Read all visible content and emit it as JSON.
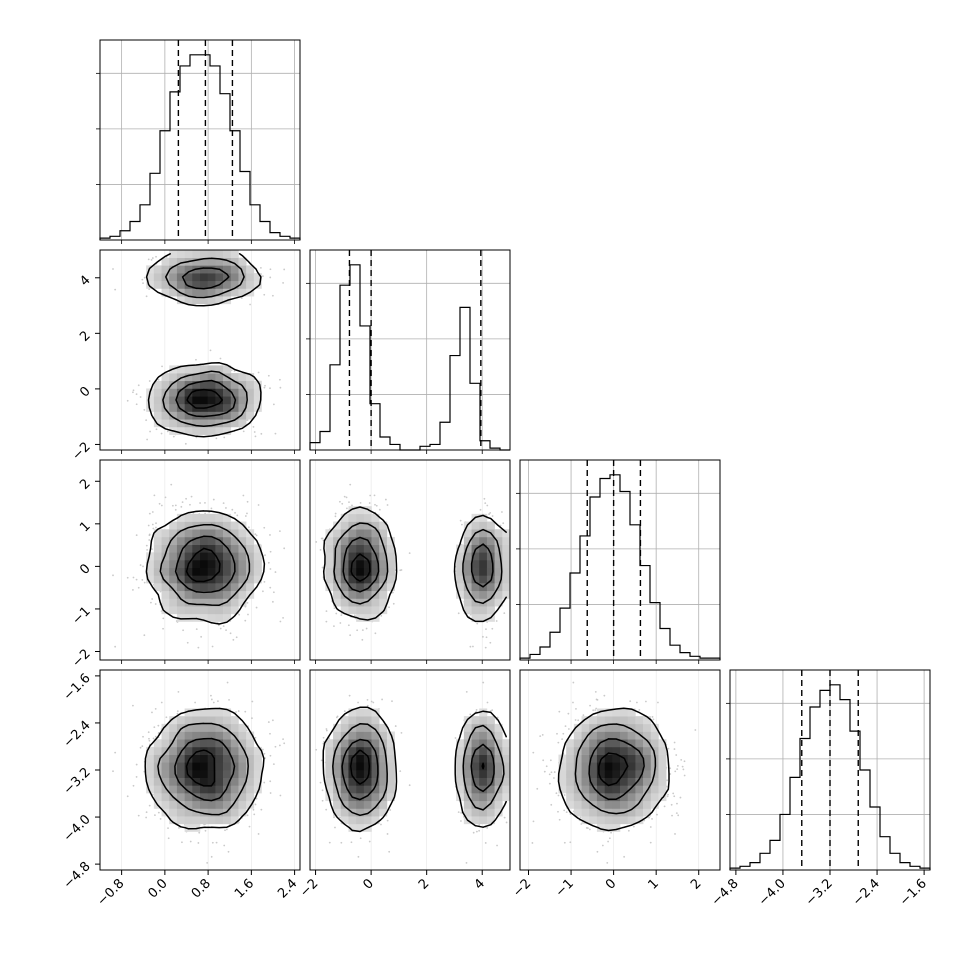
{
  "chart_data": {
    "type": "corner",
    "grid": true,
    "dims": [
      {
        "mean": 0.75,
        "sd": 0.5,
        "range": [
          -1.2,
          2.5
        ],
        "ticks": [
          -0.8,
          0.0,
          0.8,
          1.6,
          2.4
        ],
        "tick_labels": [
          "−0.8",
          "0.0",
          "0.8",
          "1.6",
          "2.4"
        ],
        "quantiles": [
          0.25,
          0.75,
          1.25
        ],
        "hist_counts": [
          1,
          2,
          5,
          10,
          19,
          36,
          59,
          80,
          94,
          100,
          100,
          94,
          79,
          59,
          37,
          19,
          10,
          4,
          2,
          1
        ]
      },
      {
        "mixture": [
          {
            "mean": -0.4,
            "sd": 0.55,
            "weight": 0.62
          },
          {
            "mean": 4.0,
            "sd": 0.38,
            "weight": 0.38
          }
        ],
        "range": [
          -2.2,
          5.0
        ],
        "ticks": [
          -2,
          0,
          2,
          4
        ],
        "tick_labels": [
          "−2",
          "0",
          "2",
          "4"
        ],
        "quantiles": [
          -0.78,
          0.0,
          3.95
        ],
        "hist_counts": [
          4,
          10,
          46,
          89,
          100,
          67,
          25,
          7,
          3,
          0,
          0,
          2,
          3,
          15,
          51,
          77,
          36,
          5,
          1,
          0
        ]
      },
      {
        "mean": 0.0,
        "sd": 0.62,
        "range": [
          -2.2,
          2.5
        ],
        "ticks": [
          -2,
          -1,
          0,
          1,
          2
        ],
        "tick_labels": [
          "−2",
          "−1",
          "0",
          "1",
          "2"
        ],
        "quantiles": [
          -0.62,
          0.0,
          0.63
        ],
        "hist_counts": [
          1,
          3,
          7,
          15,
          28,
          47,
          67,
          88,
          98,
          100,
          91,
          73,
          51,
          31,
          17,
          8,
          4,
          2,
          1,
          1
        ]
      },
      {
        "mean": -3.2,
        "sd": 0.48,
        "range": [
          -4.9,
          -1.5
        ],
        "ticks": [
          -4.8,
          -4.0,
          -3.2,
          -2.4,
          -1.6
        ],
        "tick_labels": [
          "−4.8",
          "−4.0",
          "−3.2",
          "−2.4",
          "−1.6"
        ],
        "quantiles": [
          -3.68,
          -3.2,
          -2.72
        ],
        "hist_counts": [
          1,
          2,
          4,
          9,
          16,
          30,
          50,
          71,
          88,
          97,
          100,
          92,
          75,
          54,
          34,
          18,
          9,
          4,
          2,
          1
        ]
      }
    ],
    "colors": {
      "contour": "#000000",
      "scatter": "#bdbdbd",
      "grid": "#b0b0b0",
      "frame": "#000000"
    }
  }
}
